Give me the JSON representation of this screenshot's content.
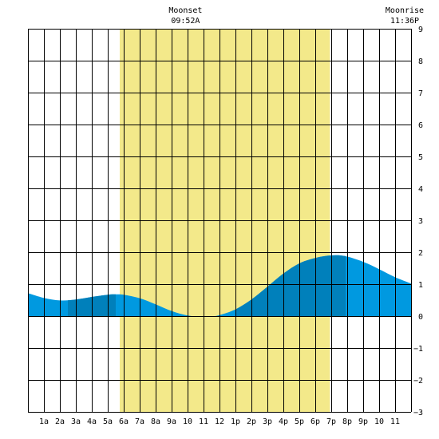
{
  "chart_data": {
    "type": "area",
    "title": "",
    "xlabel": "",
    "ylabel": "",
    "x_range": [
      0,
      24
    ],
    "ylim": [
      -3,
      9
    ],
    "y_ticks": [
      -3,
      -2,
      -1,
      0,
      1,
      2,
      3,
      4,
      5,
      6,
      7,
      8,
      9
    ],
    "x_tick_labels": [
      "1a",
      "2a",
      "3a",
      "4a",
      "5a",
      "6a",
      "7a",
      "8a",
      "9a",
      "10",
      "11",
      "12",
      "1p",
      "2p",
      "3p",
      "4p",
      "5p",
      "6p",
      "7p",
      "8p",
      "9p",
      "10",
      "11"
    ],
    "grid": true,
    "daylight": {
      "start_hour": 5.75,
      "end_hour": 18.92
    },
    "tide": {
      "hours": [
        0,
        1,
        2,
        3,
        4,
        5,
        5.5,
        6,
        7,
        8,
        9,
        10,
        11,
        11.5,
        12,
        13,
        14,
        15,
        16,
        17,
        18,
        19,
        19.85,
        21,
        22,
        23,
        24
      ],
      "heights": [
        0.72,
        0.57,
        0.49,
        0.52,
        0.6,
        0.67,
        0.68,
        0.67,
        0.56,
        0.37,
        0.16,
        0.02,
        -0.02,
        -0.01,
        0.03,
        0.21,
        0.52,
        0.92,
        1.33,
        1.65,
        1.82,
        1.9,
        1.88,
        1.7,
        1.47,
        1.22,
        1.02
      ],
      "dark_bands": [
        [
          2.5,
          5.5
        ],
        [
          13.0,
          19.9
        ]
      ]
    },
    "colors": {
      "tide_light": "#0099e0",
      "tide_dark": "#0080bb",
      "daylight": "#f3e98a",
      "grid": "#000000"
    },
    "annotations": [
      {
        "label": "Moonset",
        "time": "09:52A",
        "hour": 9.87
      },
      {
        "label": "Moonrise",
        "time": "11:36P",
        "hour": 23.6
      }
    ]
  }
}
